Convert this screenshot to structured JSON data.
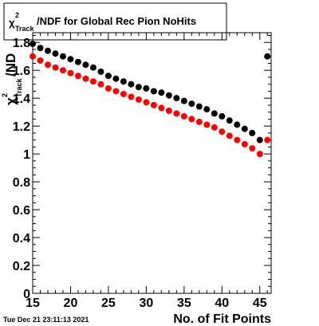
{
  "chart_data": {
    "type": "scatter",
    "title_parts": {
      "chi": "χ",
      "sup": "2",
      "sub": "Track",
      "rest": "/NDF for Global Rec Pion NoHits"
    },
    "xlabel": "No. of Fit Points",
    "ylabel_parts": {
      "chi": "χ",
      "sup": "2",
      "sub": "Track",
      "rest": "/ND"
    },
    "xlim": [
      15,
      46.5
    ],
    "ylim": [
      0,
      1.87
    ],
    "xticks": [
      15,
      20,
      25,
      30,
      35,
      40,
      45
    ],
    "yticks": [
      0,
      0.2,
      0.4,
      0.6,
      0.8,
      1,
      1.2,
      1.4,
      1.6,
      1.8
    ],
    "ytick_labels": [
      "0",
      "0.2",
      "0.4",
      "0.6",
      "0.8",
      "1",
      "1.2",
      "1.4",
      "1.6",
      "1.8"
    ],
    "series": [
      {
        "color": "#000000",
        "x": [
          15,
          16,
          17,
          18,
          19,
          20,
          21,
          22,
          23,
          24,
          25,
          26,
          27,
          28,
          29,
          30,
          31,
          32,
          33,
          34,
          35,
          36,
          37,
          38,
          39,
          40,
          41,
          42,
          43,
          44,
          45,
          46
        ],
        "y": [
          1.79,
          1.76,
          1.74,
          1.72,
          1.7,
          1.68,
          1.66,
          1.64,
          1.62,
          1.59,
          1.56,
          1.54,
          1.52,
          1.5,
          1.48,
          1.47,
          1.45,
          1.44,
          1.42,
          1.4,
          1.38,
          1.36,
          1.34,
          1.32,
          1.29,
          1.27,
          1.24,
          1.21,
          1.18,
          1.15,
          1.1,
          1.7
        ]
      },
      {
        "color": "#ff0000",
        "x": [
          15,
          16,
          17,
          18,
          19,
          20,
          21,
          22,
          23,
          24,
          25,
          26,
          27,
          28,
          29,
          30,
          31,
          32,
          33,
          34,
          35,
          36,
          37,
          38,
          39,
          40,
          41,
          42,
          43,
          44,
          45,
          46
        ],
        "y": [
          1.7,
          1.67,
          1.64,
          1.62,
          1.6,
          1.58,
          1.56,
          1.54,
          1.52,
          1.5,
          1.47,
          1.45,
          1.43,
          1.41,
          1.39,
          1.37,
          1.35,
          1.33,
          1.31,
          1.29,
          1.27,
          1.25,
          1.23,
          1.21,
          1.19,
          1.16,
          1.13,
          1.1,
          1.07,
          1.04,
          1.0,
          1.1
        ]
      }
    ]
  },
  "timestamp": "Tue Dec 21 23:11:13 2021"
}
